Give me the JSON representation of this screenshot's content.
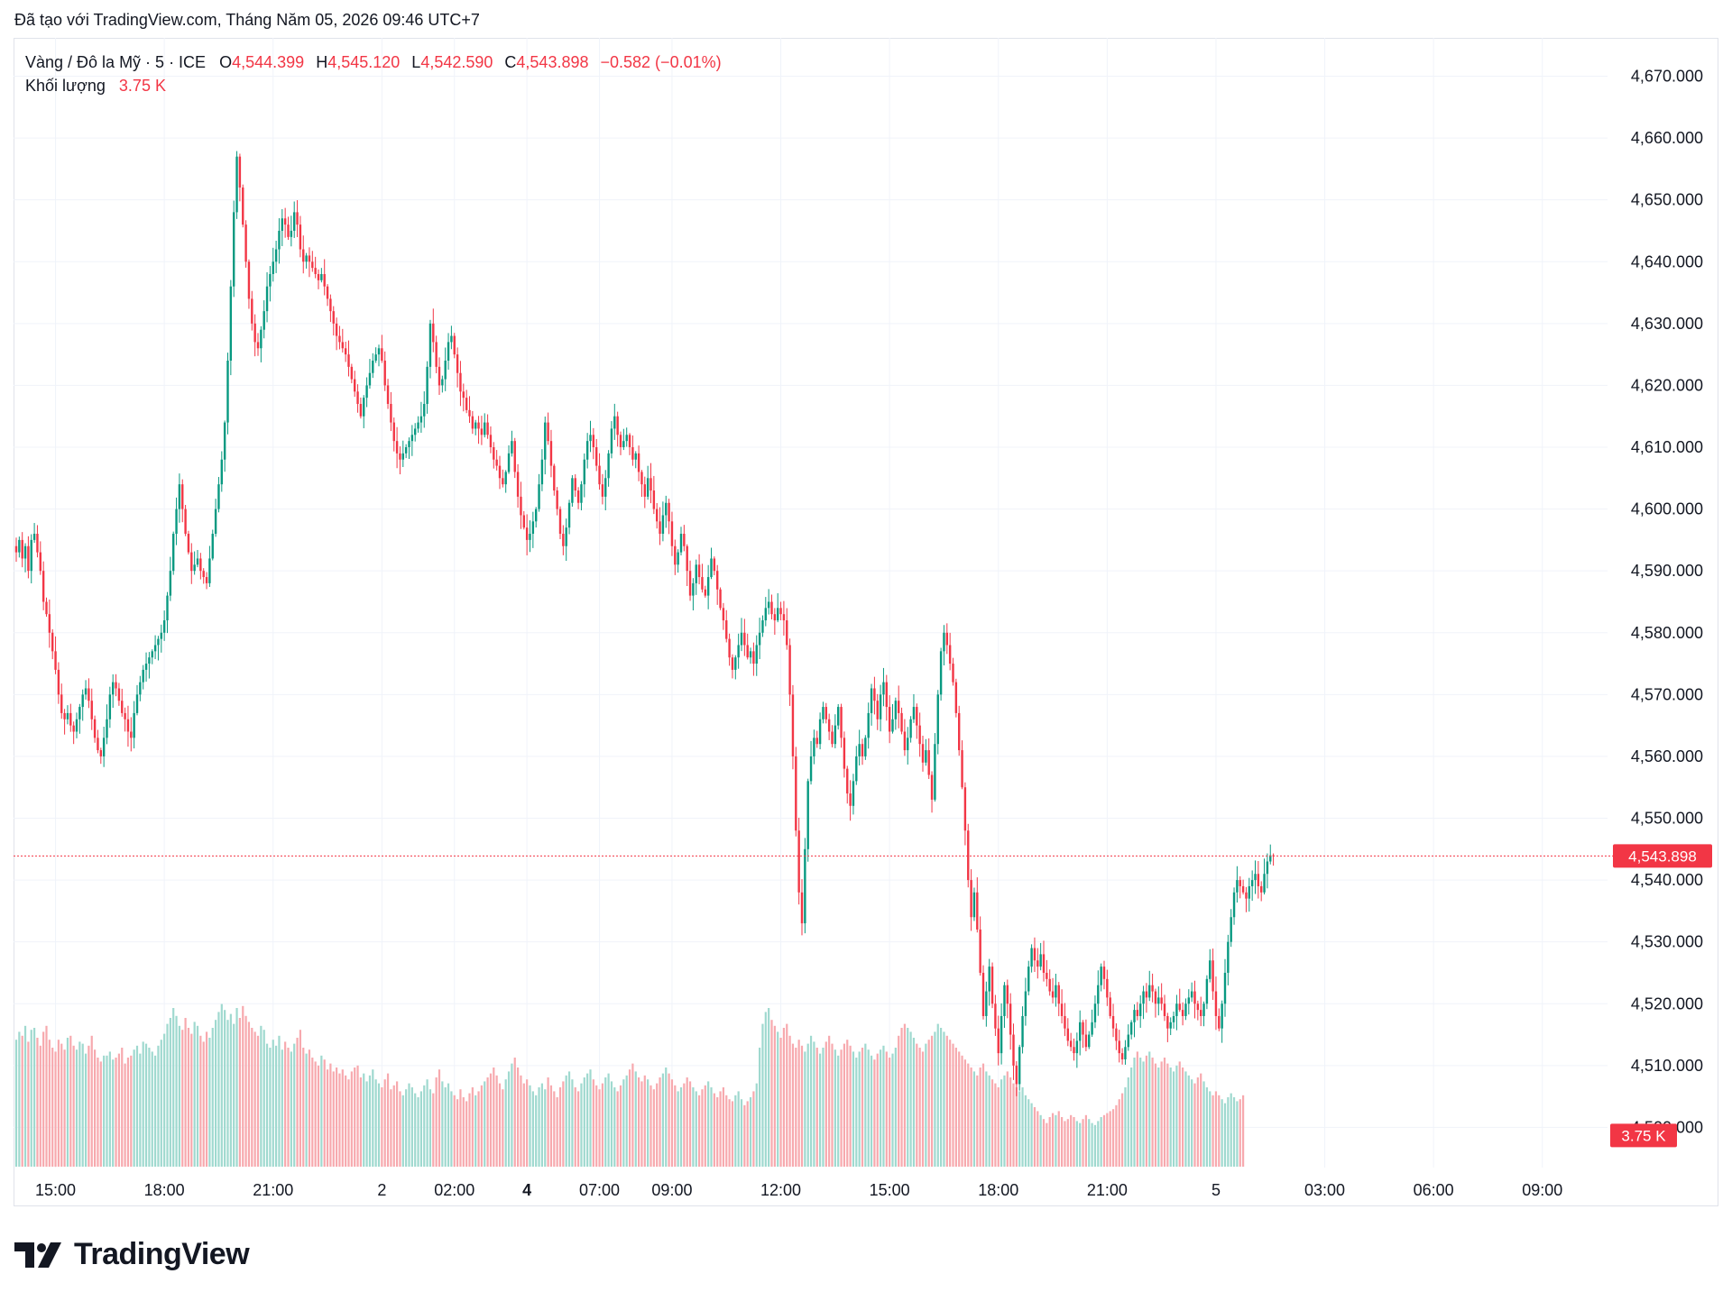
{
  "caption": "Đã tạo với TradingView.com, Tháng Năm 05, 2026 09:46 UTC+7",
  "legend": {
    "symbol": "Vàng / Đô la Mỹ · 5 · ICE",
    "o_label": "O",
    "o_value": "4,544.399",
    "h_label": "H",
    "h_value": "4,545.120",
    "l_label": "L",
    "l_value": "4,542.590",
    "c_label": "C",
    "c_value": "4,543.898",
    "change": "−0.582 (−0.01%)",
    "volume_label": "Khối lượng",
    "volume_value": "3.75 K"
  },
  "colors": {
    "up": "#089981",
    "down": "#f23645",
    "up_volume": "#9fd9cf",
    "down_volume": "#f7a9ae",
    "grid": "#f0f3fa",
    "text": "#131722"
  },
  "price_label": "4,543.898",
  "volume_badge": "3.75 K",
  "logo_text": "TradingView",
  "chart_data": {
    "type": "candlestick",
    "timeframe": "5",
    "y_ticks": [
      4500,
      4510,
      4520,
      4530,
      4540,
      4550,
      4560,
      4570,
      4580,
      4590,
      4600,
      4610,
      4620,
      4630,
      4640,
      4650,
      4660,
      4670
    ],
    "y_tick_labels": [
      "4,500.000",
      "4,510.000",
      "4,520.000",
      "4,530.000",
      "4,540.000",
      "4,550.000",
      "4,560.000",
      "4,570.000",
      "4,580.000",
      "4,590.000",
      "4,600.000",
      "4,610.000",
      "4,620.000",
      "4,630.000",
      "4,640.000",
      "4,650.000",
      "4,660.000",
      "4,670.000"
    ],
    "ylim": [
      4493.5,
      4676.2
    ],
    "x_tick_labels": [
      {
        "label": "15:00",
        "i": 13,
        "bold": false
      },
      {
        "label": "18:00",
        "i": 49,
        "bold": false
      },
      {
        "label": "21:00",
        "i": 85,
        "bold": false
      },
      {
        "label": "2",
        "i": 121,
        "bold": false
      },
      {
        "label": "02:00",
        "i": 145,
        "bold": false
      },
      {
        "label": "4",
        "i": 169,
        "bold": true
      },
      {
        "label": "07:00",
        "i": 193,
        "bold": false
      },
      {
        "label": "09:00",
        "i": 217,
        "bold": false
      },
      {
        "label": "12:00",
        "i": 253,
        "bold": false
      },
      {
        "label": "15:00",
        "i": 289,
        "bold": false
      },
      {
        "label": "18:00",
        "i": 325,
        "bold": false
      },
      {
        "label": "21:00",
        "i": 361,
        "bold": false
      },
      {
        "label": "5",
        "i": 397,
        "bold": false
      },
      {
        "label": "03:00",
        "i": 433,
        "bold": false
      },
      {
        "label": "06:00",
        "i": 469,
        "bold": false
      },
      {
        "label": "09:00",
        "i": 505,
        "bold": false
      }
    ],
    "last_close": 4543.898,
    "last_volume": "3.75 K",
    "closes": [
      4593,
      4595,
      4592,
      4594,
      4590,
      4595,
      4596,
      4593,
      4590,
      4585,
      4583,
      4580,
      4577,
      4574,
      4570,
      4567,
      4566,
      4567,
      4565,
      4564,
      4566,
      4568,
      4570,
      4571,
      4569,
      4566,
      4563,
      4561,
      4560,
      4563,
      4566,
      4570,
      4572,
      4571,
      4569,
      4567,
      4566,
      4564,
      4563,
      4567,
      4570,
      4572,
      4574,
      4575,
      4576,
      4577,
      4578,
      4579,
      4580,
      4582,
      4586,
      4590,
      4596,
      4600,
      4604,
      4600,
      4596,
      4593,
      4590,
      4591,
      4592,
      4590,
      4589,
      4588,
      4592,
      4596,
      4600,
      4604,
      4608,
      4614,
      4624,
      4636,
      4648,
      4657,
      4652,
      4646,
      4640,
      4634,
      4630,
      4627,
      4626,
      4629,
      4632,
      4636,
      4638,
      4640,
      4642,
      4645,
      4647,
      4646,
      4644,
      4645,
      4648,
      4646,
      4642,
      4640,
      4641,
      4640,
      4639,
      4638,
      4637,
      4638,
      4636,
      4634,
      4632,
      4630,
      4628,
      4627,
      4626,
      4625,
      4623,
      4621,
      4619,
      4617,
      4615,
      4618,
      4620,
      4622,
      4624,
      4625,
      4626,
      4624,
      4620,
      4617,
      4614,
      4611,
      4609,
      4608,
      4609,
      4610,
      4611,
      4612,
      4613,
      4614,
      4615,
      4617,
      4623,
      4630,
      4627,
      4623,
      4620,
      4621,
      4624,
      4627,
      4628,
      4625,
      4622,
      4619,
      4618,
      4616,
      4615,
      4613,
      4614,
      4613,
      4612,
      4614,
      4612,
      4610,
      4608,
      4607,
      4605,
      4604,
      4606,
      4609,
      4611,
      4606,
      4602,
      4599,
      4597,
      4595,
      4596,
      4598,
      4600,
      4604,
      4608,
      4614,
      4611,
      4607,
      4603,
      4600,
      4596,
      4594,
      4597,
      4601,
      4605,
      4603,
      4601,
      4604,
      4608,
      4611,
      4612,
      4610,
      4607,
      4604,
      4602,
      4605,
      4609,
      4613,
      4615,
      4612,
      4610,
      4611,
      4612,
      4610,
      4608,
      4609,
      4606,
      4604,
      4602,
      4605,
      4603,
      4600,
      4598,
      4596,
      4599,
      4601,
      4598,
      4594,
      4591,
      4593,
      4596,
      4594,
      4590,
      4586,
      4588,
      4591,
      4589,
      4587,
      4586,
      4589,
      4592,
      4590,
      4587,
      4584,
      4582,
      4579,
      4576,
      4574,
      4576,
      4578,
      4580,
      4578,
      4576,
      4577,
      4575,
      4578,
      4580,
      4582,
      4584,
      4585,
      4583,
      4582,
      4584,
      4583,
      4582,
      4578,
      4570,
      4560,
      4548,
      4538,
      4533,
      4545,
      4556,
      4560,
      4563,
      4562,
      4566,
      4568,
      4566,
      4564,
      4562,
      4565,
      4568,
      4563,
      4558,
      4554,
      4552,
      4556,
      4560,
      4562,
      4560,
      4563,
      4567,
      4571,
      4569,
      4566,
      4570,
      4572,
      4568,
      4564,
      4566,
      4569,
      4567,
      4564,
      4561,
      4563,
      4566,
      4568,
      4565,
      4562,
      4559,
      4561,
      4557,
      4553,
      4562,
      4570,
      4577,
      4580,
      4578,
      4575,
      4572,
      4567,
      4561,
      4555,
      4548,
      4540,
      4534,
      4538,
      4532,
      4525,
      4518,
      4522,
      4526,
      4520,
      4516,
      4512,
      4518,
      4523,
      4520,
      4515,
      4510,
      4507,
      4513,
      4518,
      4522,
      4526,
      4529,
      4527,
      4526,
      4528,
      4525,
      4524,
      4522,
      4521,
      4523,
      4520,
      4518,
      4516,
      4514,
      4513,
      4512,
      4514,
      4517,
      4515,
      4513,
      4515,
      4517,
      4520,
      4523,
      4526,
      4524,
      4521,
      4518,
      4516,
      4514,
      4512,
      4511,
      4513,
      4515,
      4517,
      4519,
      4518,
      4520,
      4522,
      4521,
      4523,
      4522,
      4520,
      4521,
      4520,
      4518,
      4516,
      4517,
      4518,
      4520,
      4519,
      4518,
      4520,
      4521,
      4522,
      4520,
      4519,
      4518,
      4520,
      4524,
      4527,
      4522,
      4518,
      4516,
      4520,
      4525,
      4530,
      4534,
      4538,
      4540,
      4539,
      4538,
      4537,
      4539,
      4540,
      4541,
      4539,
      4538,
      4541,
      4543,
      4544,
      4543.898
    ],
    "vol_start": 12.0,
    "vol_bars": [
      64,
      68,
      66,
      71,
      63,
      69,
      70,
      65,
      61,
      68,
      71,
      64,
      60,
      58,
      64,
      62,
      59,
      65,
      66,
      61,
      59,
      63,
      62,
      57,
      61,
      66,
      59,
      55,
      53,
      56,
      56,
      58,
      54,
      55,
      57,
      60,
      52,
      55,
      56,
      59,
      61,
      57,
      63,
      62,
      60,
      58,
      56,
      61,
      64,
      67,
      72,
      75,
      80,
      76,
      71,
      69,
      75,
      70,
      67,
      73,
      71,
      66,
      63,
      68,
      65,
      70,
      74,
      78,
      82,
      79,
      74,
      77,
      72,
      80,
      75,
      81,
      76,
      73,
      70,
      68,
      66,
      71,
      69,
      62,
      60,
      64,
      61,
      66,
      59,
      63,
      60,
      58,
      62,
      65,
      69,
      60,
      57,
      59,
      55,
      53,
      51,
      56,
      54,
      49,
      52,
      48,
      50,
      47,
      49,
      46,
      44,
      48,
      50,
      51,
      45,
      47,
      43,
      46,
      49,
      44,
      42,
      40,
      44,
      47,
      39,
      41,
      43,
      38,
      36,
      39,
      42,
      40,
      37,
      35,
      38,
      41,
      44,
      39,
      37,
      45,
      49,
      43,
      40,
      42,
      38,
      36,
      34,
      39,
      35,
      33,
      37,
      40,
      36,
      38,
      41,
      43,
      45,
      47,
      50,
      46,
      42,
      39,
      44,
      48,
      52,
      55,
      50,
      46,
      42,
      44,
      41,
      38,
      36,
      40,
      42,
      39,
      45,
      41,
      38,
      35,
      40,
      43,
      46,
      48,
      44,
      40,
      38,
      42,
      45,
      47,
      49,
      44,
      41,
      39,
      42,
      45,
      47,
      43,
      40,
      38,
      41,
      44,
      46,
      49,
      52,
      48,
      45,
      43,
      46,
      44,
      41,
      39,
      42,
      45,
      47,
      50,
      47,
      44,
      41,
      38,
      40,
      42,
      45,
      43,
      40,
      38,
      36,
      39,
      41,
      43,
      40,
      37,
      35,
      38,
      40,
      36,
      34,
      33,
      36,
      38,
      34,
      31,
      33,
      35,
      38,
      42,
      60,
      72,
      78,
      80,
      74,
      71,
      68,
      65,
      70,
      72,
      66,
      62,
      60,
      64,
      61,
      58,
      62,
      66,
      63,
      60,
      57,
      60,
      63,
      66,
      62,
      59,
      56,
      59,
      62,
      64,
      61,
      58,
      55,
      58,
      60,
      62,
      59,
      56,
      54,
      57,
      59,
      61,
      58,
      55,
      57,
      60,
      66,
      70,
      72,
      70,
      68,
      65,
      62,
      60,
      58,
      62,
      64,
      66,
      68,
      72,
      70,
      68,
      66,
      64,
      62,
      60,
      58,
      56,
      54,
      52,
      50,
      48,
      46,
      50,
      52,
      48,
      46,
      44,
      42,
      40,
      44,
      46,
      48,
      45,
      42,
      40,
      38,
      40,
      36,
      34,
      32,
      30,
      28,
      26,
      24,
      22,
      25,
      27,
      26,
      28,
      25,
      23,
      24,
      26,
      25,
      23,
      22,
      24,
      26,
      24,
      22,
      21,
      23,
      25,
      26,
      27,
      28,
      29,
      31,
      34,
      37,
      40,
      45,
      50,
      55,
      58,
      55,
      53,
      56,
      58,
      55,
      52,
      50,
      53,
      55,
      52,
      50,
      48,
      51,
      53,
      50,
      48,
      46,
      44,
      42,
      45,
      47,
      43,
      40,
      38,
      36,
      38,
      36,
      34,
      32,
      35,
      37,
      35,
      33,
      34,
      36
    ]
  }
}
